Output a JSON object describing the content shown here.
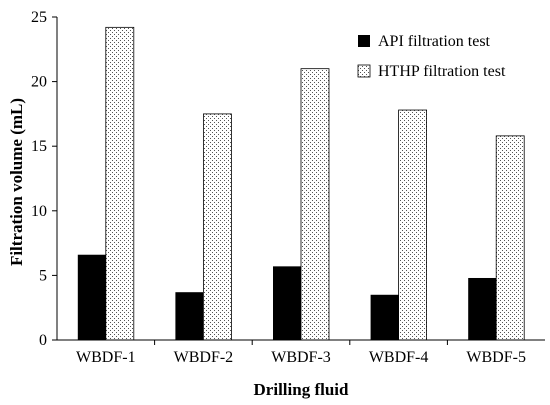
{
  "chart_data": {
    "type": "bar",
    "title": "",
    "xlabel": "Drilling fluid",
    "ylabel": "Filtration volume (mL)",
    "categories": [
      "WBDF-1",
      "WBDF-2",
      "WBDF-3",
      "WBDF-4",
      "WBDF-5"
    ],
    "series": [
      {
        "name": "API filtration test",
        "values": [
          6.6,
          3.7,
          5.7,
          3.5,
          4.8
        ],
        "color": "#000000",
        "pattern": "solid"
      },
      {
        "name": "HTHP filtration test",
        "values": [
          24.2,
          17.5,
          21.0,
          17.8,
          15.8
        ],
        "color": "#ffffff",
        "pattern": "dotted"
      }
    ],
    "ylim": [
      0,
      25
    ],
    "yticks": [
      0,
      5,
      10,
      15,
      20,
      25
    ],
    "grid": false,
    "legend_position": "top-right"
  }
}
